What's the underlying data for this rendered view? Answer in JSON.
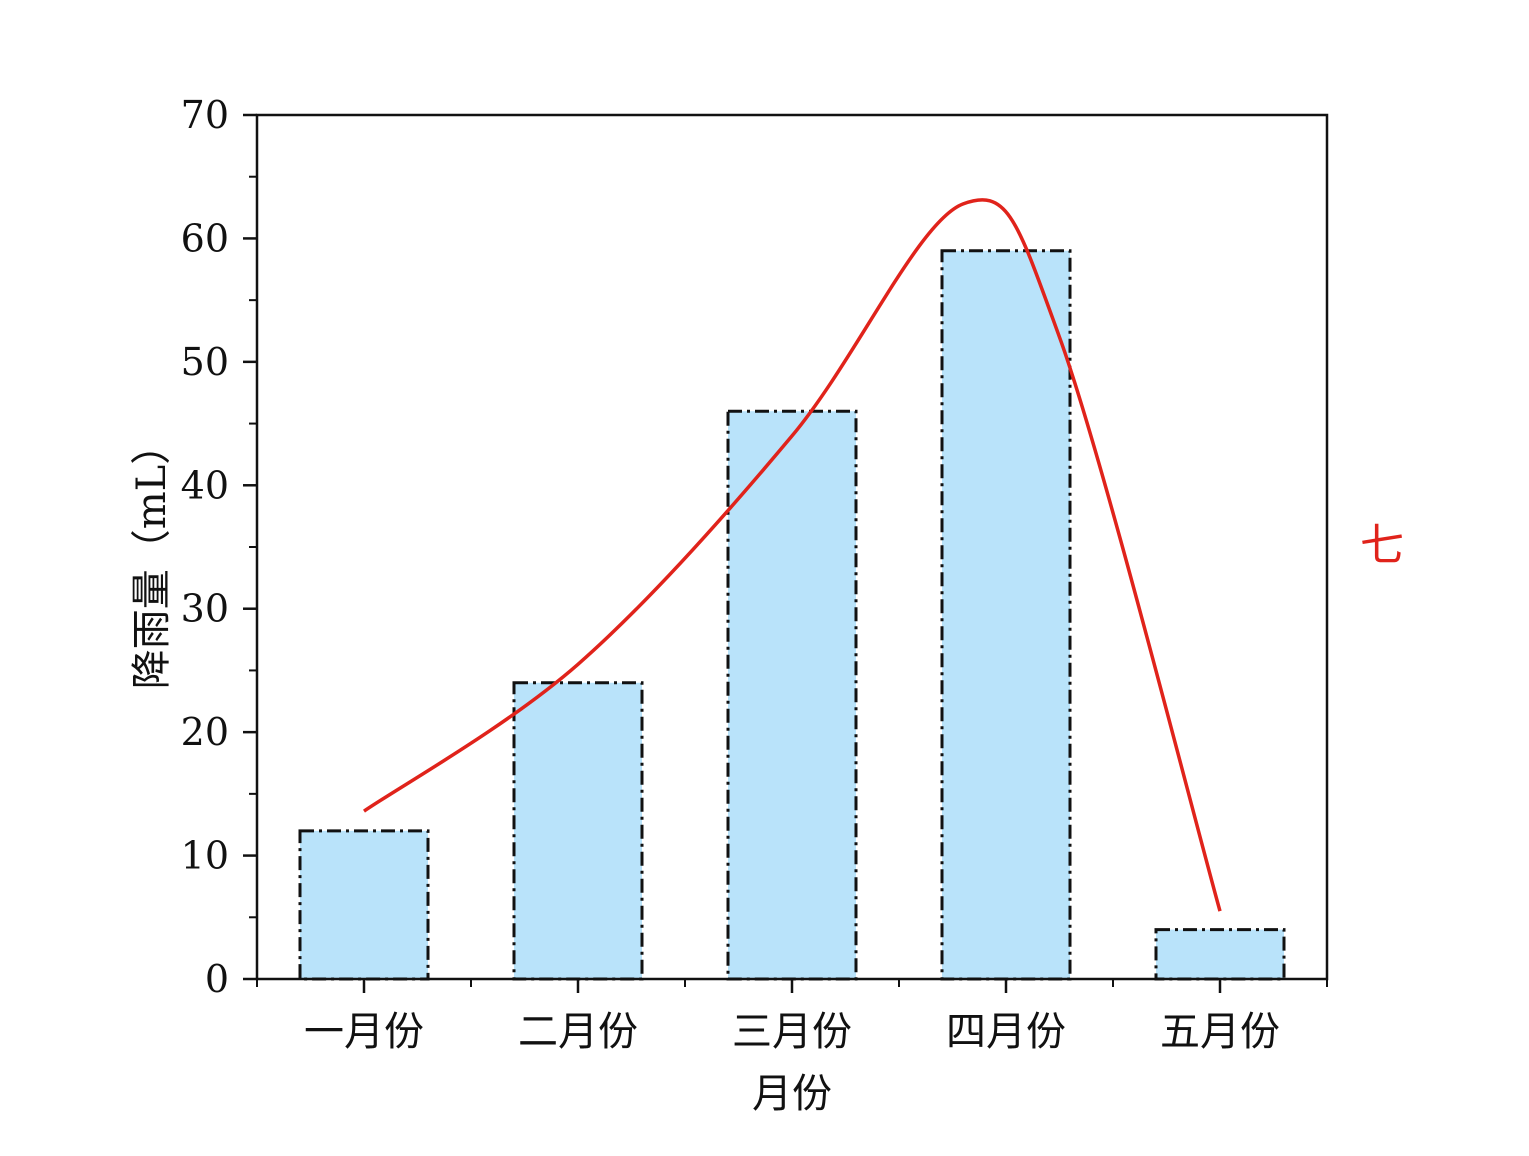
{
  "chart_data": {
    "type": "bar",
    "categories": [
      "一月份",
      "二月份",
      "三月份",
      "四月份",
      "五月份"
    ],
    "values": [
      12,
      24,
      46,
      59,
      4
    ],
    "xlabel": "月份",
    "ylabel": "降雨量（mL）",
    "ylim": [
      0,
      70
    ],
    "yticks": [
      0,
      10,
      20,
      30,
      40,
      50,
      60,
      70
    ],
    "bar_fill": "#b9e3fa",
    "bar_edge": "#111111",
    "curve": {
      "color": "#e0231b",
      "points": [
        [
          0,
          13.6
        ],
        [
          1,
          25.5
        ],
        [
          2,
          44.0
        ],
        [
          2.8,
          62.8
        ],
        [
          3.25,
          52.0
        ],
        [
          4,
          5.5
        ]
      ]
    },
    "side_label": "七",
    "grid": false,
    "legend": "none"
  }
}
